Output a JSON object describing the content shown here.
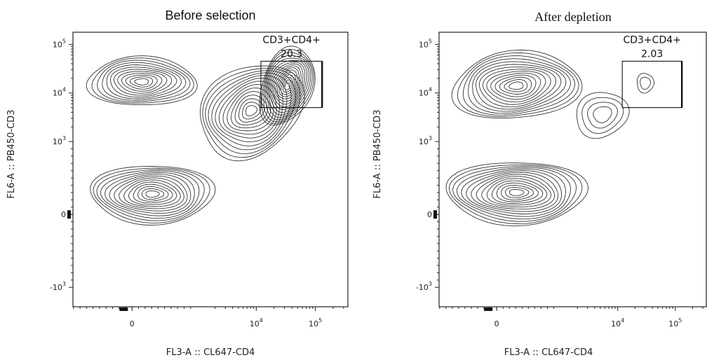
{
  "chart_data": [
    {
      "type": "contour",
      "title": "Before selection",
      "xlabel": "FL3-A :: CL647-CD4",
      "ylabel": "FL6-A :: PB450-CD3",
      "x_ticks": [
        {
          "value": 0,
          "label": "0",
          "exp": ""
        },
        {
          "value": 10000,
          "label": "10",
          "exp": "4"
        },
        {
          "value": 100000,
          "label": "10",
          "exp": "5"
        }
      ],
      "y_ticks": [
        {
          "value": -1000,
          "label": "-10",
          "exp": "3"
        },
        {
          "value": 0,
          "label": "0",
          "exp": ""
        },
        {
          "value": 1000,
          "label": "10",
          "exp": "3"
        },
        {
          "value": 10000,
          "label": "10",
          "exp": "4"
        },
        {
          "value": 100000,
          "label": "10",
          "exp": "5"
        }
      ],
      "gate": {
        "name": "CD3+CD4+",
        "percent": "20.3",
        "x_range": [
          12000,
          130000
        ],
        "y_range": [
          5000,
          45000
        ]
      },
      "populations": [
        {
          "x": 150,
          "y": 17000,
          "rings": 12
        },
        {
          "x": 7000,
          "y": 3800,
          "rings": 14
        },
        {
          "x": 32000,
          "y": 14000,
          "rings": 16
        },
        {
          "x": 300,
          "y": 280,
          "rings": 14
        }
      ]
    },
    {
      "type": "contour",
      "title": "After depletion",
      "xlabel": "FL3-A :: CL647-CD4",
      "ylabel": "FL6-A :: PB450-CD3",
      "x_ticks": [
        {
          "value": 0,
          "label": "0",
          "exp": ""
        },
        {
          "value": 10000,
          "label": "10",
          "exp": "4"
        },
        {
          "value": 100000,
          "label": "10",
          "exp": "5"
        }
      ],
      "y_ticks": [
        {
          "value": -1000,
          "label": "-10",
          "exp": "3"
        },
        {
          "value": 0,
          "label": "0",
          "exp": ""
        },
        {
          "value": 1000,
          "label": "10",
          "exp": "3"
        },
        {
          "value": 10000,
          "label": "10",
          "exp": "4"
        },
        {
          "value": 100000,
          "label": "10",
          "exp": "5"
        }
      ],
      "gate": {
        "name": "CD3+CD4+",
        "percent": "2.03",
        "x_range": [
          12000,
          130000
        ],
        "y_range": [
          5000,
          45000
        ]
      },
      "populations": [
        {
          "x": 300,
          "y": 14000,
          "rings": 14
        },
        {
          "x": 5000,
          "y": 3500,
          "rings": 4
        },
        {
          "x": 30000,
          "y": 16000,
          "rings": 2
        },
        {
          "x": 300,
          "y": 300,
          "rings": 15
        }
      ]
    }
  ]
}
